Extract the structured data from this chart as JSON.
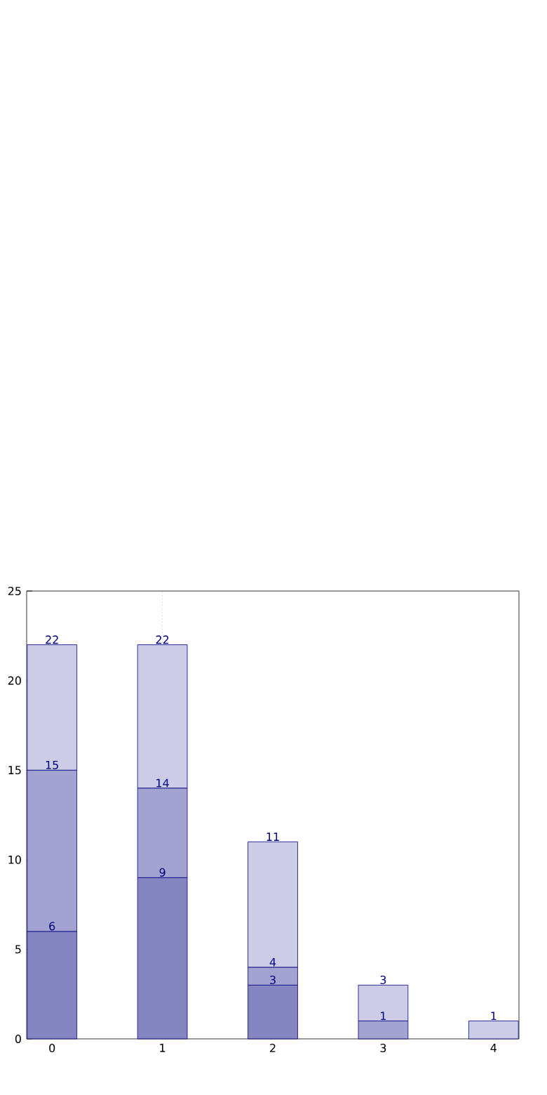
{
  "chart_data": {
    "type": "bar",
    "stacked": true,
    "x": [
      0,
      1,
      2,
      3,
      4
    ],
    "series": [
      {
        "color": "#8585c2",
        "values": [
          6,
          9,
          3,
          null,
          null
        ]
      },
      {
        "color": "#a3a3d1",
        "values": [
          9,
          5,
          1,
          1,
          null
        ]
      },
      {
        "color": "#cccce6",
        "values": [
          7,
          8,
          7,
          2,
          1
        ]
      }
    ],
    "annotations": [
      {
        "text": "6",
        "x": 0,
        "y": 6
      },
      {
        "text": "15",
        "x": 0,
        "y": 15
      },
      {
        "text": "22",
        "x": 0,
        "y": 22
      },
      {
        "text": "9",
        "x": 1,
        "y": 9
      },
      {
        "text": "14",
        "x": 1,
        "y": 14
      },
      {
        "text": "22",
        "x": 1,
        "y": 22
      },
      {
        "text": "3",
        "x": 2,
        "y": 3
      },
      {
        "text": "4",
        "x": 2,
        "y": 4
      },
      {
        "text": "11",
        "x": 2,
        "y": 11
      },
      {
        "text": "1",
        "x": 3,
        "y": 1
      },
      {
        "text": "3",
        "x": 3,
        "y": 3
      },
      {
        "text": "1",
        "x": 4,
        "y": 1
      }
    ],
    "xlim": [
      -0.23,
      4.23
    ],
    "xticks": [
      0,
      1,
      2,
      3,
      4
    ],
    "ylim": [
      0,
      25
    ],
    "yticks": [
      0,
      5,
      10,
      15,
      20,
      25
    ],
    "ref_lines": [
      {
        "axis": "x",
        "value": 1,
        "color": "#999999",
        "line_style": "dotted"
      }
    ]
  }
}
